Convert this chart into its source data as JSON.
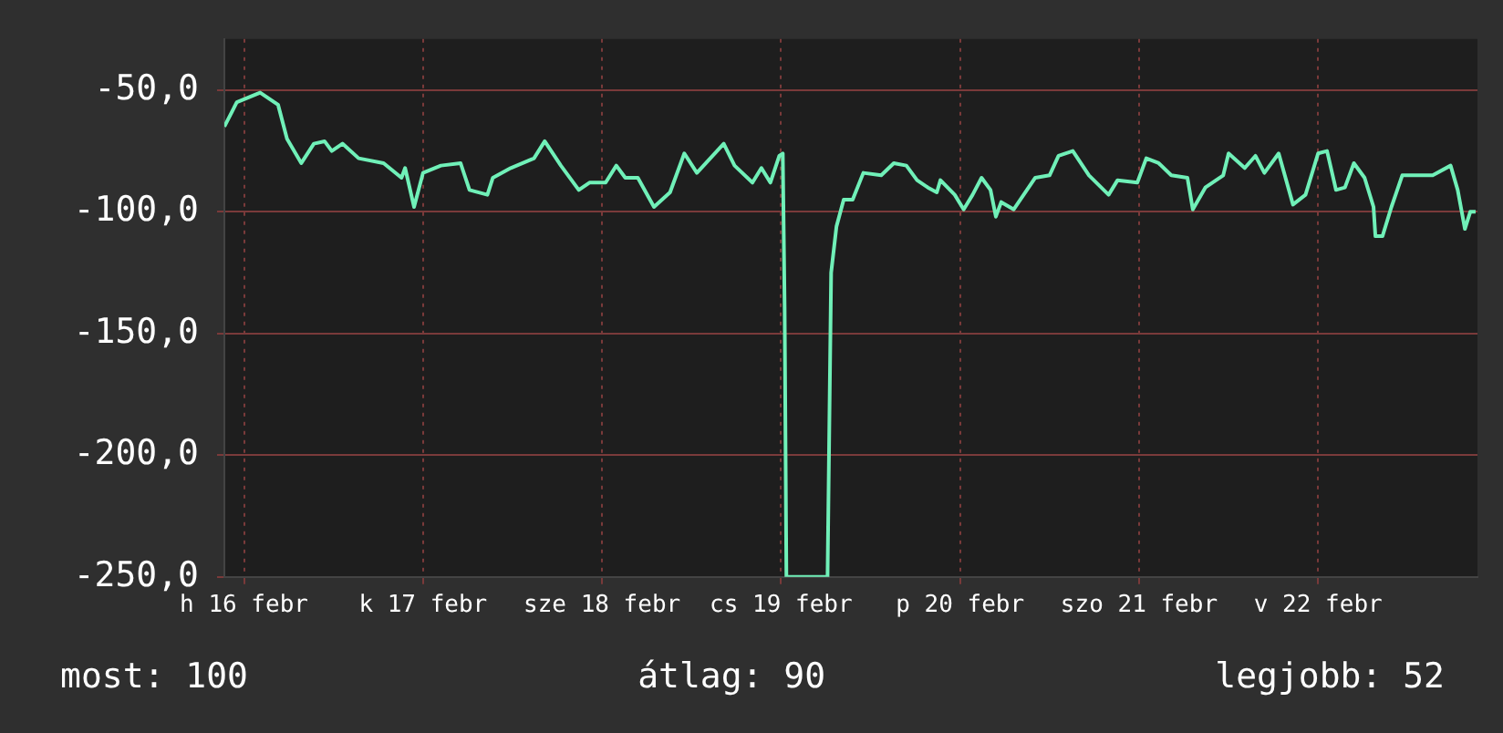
{
  "chart_data": {
    "type": "line",
    "x": [
      "--02-15T21:22",
      "--02-15T23:02",
      "--02-16T02:10",
      "--02-16T04:34",
      "--02-16T05:46",
      "--02-16T07:41",
      "--02-16T09:22",
      "--02-16T10:48",
      "--02-16T11:46",
      "--02-16T13:12",
      "--02-16T15:22",
      "--02-16T18:43",
      "--02-16T21:07",
      "--02-16T21:36",
      "--02-16T22:48",
      "--02-17T00:00",
      "--02-17T02:24",
      "--02-17T05:02",
      "--02-17T06:14",
      "--02-17T08:38",
      "--02-17T09:22",
      "--02-17T11:46",
      "--02-17T14:53",
      "--02-17T16:19",
      "--02-17T18:29",
      "--02-17T20:53",
      "--02-17T22:19",
      "--02-18T00:29",
      "--02-18T01:55",
      "--02-18T03:07",
      "--02-18T04:48",
      "--02-18T06:58",
      "--02-18T09:07",
      "--02-18T11:02",
      "--02-18T12:43",
      "--02-18T16:19",
      "--02-18T17:46",
      "--02-18T20:10",
      "--02-18T21:22",
      "--02-18T22:34",
      "--02-18T23:46",
      "--02-19T00:14",
      "--02-19T00:29",
      "--02-19T00:43",
      "--02-19T06:14",
      "--02-19T06:43",
      "--02-19T07:26",
      "--02-19T08:24",
      "--02-19T09:36",
      "--02-19T11:02",
      "--02-19T13:26",
      "--02-19T15:07",
      "--02-19T16:48",
      "--02-19T18:14",
      "--02-19T19:41",
      "--02-19T20:53",
      "--02-19T21:22",
      "--02-19T23:17",
      "--02-20T00:29",
      "--02-20T01:41",
      "--02-20T02:53",
      "--02-20T04:05",
      "--02-20T04:48",
      "--02-20T05:31",
      "--02-20T07:12",
      "--02-20T10:05",
      "--02-20T12:00",
      "--02-20T13:12",
      "--02-20T15:07",
      "--02-20T17:17",
      "--02-20T19:55",
      "--02-20T21:07",
      "--02-20T23:46",
      "--02-21T00:58",
      "--02-21T02:38",
      "--02-21T04:19",
      "--02-21T06:29",
      "--02-21T07:12",
      "--02-21T08:53",
      "--02-21T11:17",
      "--02-21T12:00",
      "--02-21T14:10",
      "--02-21T15:36",
      "--02-21T16:48",
      "--02-21T18:43",
      "--02-21T20:38",
      "--02-21T22:19",
      "--02-22T00:00",
      "--02-22T01:12",
      "--02-22T02:24",
      "--02-22T03:36",
      "--02-22T04:48",
      "--02-22T06:14",
      "--02-22T07:26",
      "--02-22T07:41",
      "--02-22T08:38",
      "--02-22T09:50",
      "--02-22T11:17",
      "--02-22T12:58",
      "--02-22T15:22",
      "--02-22T17:46",
      "--02-22T18:43",
      "--02-22T19:41",
      "--02-22T20:24",
      "--02-22T21:07"
    ],
    "series": [
      {
        "color": "#70f0b8",
        "values": [
          -65,
          -55,
          -51,
          -56,
          -70,
          -80,
          -72,
          -71,
          -75,
          -72,
          -78,
          -80,
          -86,
          -82,
          -98,
          -84,
          -81,
          -80,
          -91,
          -93,
          -86,
          -82,
          -78,
          -71,
          -81,
          -91,
          -88,
          -88,
          -81,
          -86,
          -86,
          -98,
          -92,
          -76,
          -84,
          -72,
          -81,
          -88,
          -82,
          -88,
          -77,
          -76,
          -140,
          -250,
          -250,
          -125,
          -106,
          -95,
          -95,
          -84,
          -85,
          -80,
          -81,
          -87,
          -90,
          -92,
          -87,
          -93,
          -99,
          -93,
          -86,
          -91,
          -102,
          -96,
          -99,
          -86,
          -85,
          -77,
          -75,
          -85,
          -93,
          -87,
          -88,
          -78,
          -80,
          -85,
          -86,
          -99,
          -90,
          -85,
          -76,
          -82,
          -77,
          -84,
          -76,
          -97,
          -93,
          -76,
          -75,
          -91,
          -90,
          -80,
          -86,
          -98,
          -110,
          -110,
          -98,
          -85,
          -85,
          -85,
          -81,
          -91,
          -107,
          -100,
          -100
        ]
      }
    ],
    "xlim": [
      "--02-15T21:22",
      "--02-22T21:22"
    ],
    "xticks": [
      {
        "value": "--02-16",
        "label": "h 16 febr"
      },
      {
        "value": "--02-17",
        "label": "k 17 febr"
      },
      {
        "value": "--02-18",
        "label": "sze 18 febr"
      },
      {
        "value": "--02-19",
        "label": "cs 19 febr"
      },
      {
        "value": "--02-20",
        "label": "p 20 febr"
      },
      {
        "value": "--02-21",
        "label": "szo 21 febr"
      },
      {
        "value": "--02-22",
        "label": "v 22 febr"
      }
    ],
    "ylim": [
      -250,
      -29
    ],
    "yticks": [
      {
        "value": -50,
        "label": "-50,0"
      },
      {
        "value": -100,
        "label": "-100,0"
      },
      {
        "value": -150,
        "label": "-150,0"
      },
      {
        "value": -200,
        "label": "-200,0"
      },
      {
        "value": -250,
        "label": "-250,0"
      }
    ],
    "grid": true,
    "legend": false,
    "marker": "none",
    "line_style": "solid",
    "annotations": [
      "most: 100",
      "átlag: 90",
      "legjobb: 52"
    ]
  }
}
